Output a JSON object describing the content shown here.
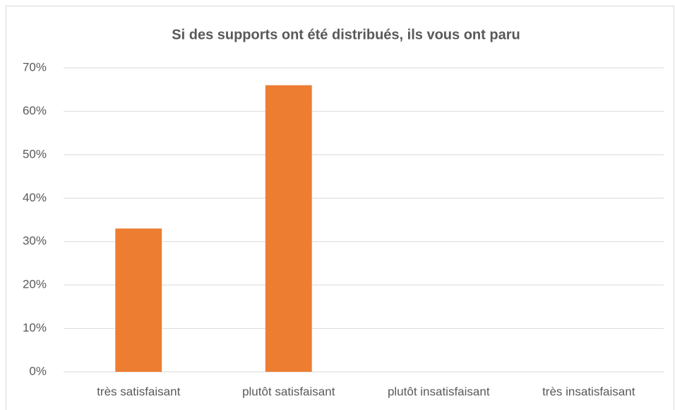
{
  "chart_data": {
    "type": "bar",
    "title": "Si des supports ont été distribués, ils vous ont paru",
    "categories": [
      "très satisfaisant",
      "plutôt satisfaisant",
      "plutôt insatisfaisant",
      "très insatisfaisant"
    ],
    "values": [
      33,
      66,
      0,
      0
    ],
    "color": "#ed7d31",
    "ylim": [
      0,
      70
    ],
    "yticks": [
      {
        "value": 0,
        "label": "0%"
      },
      {
        "value": 10,
        "label": "10%"
      },
      {
        "value": 20,
        "label": "20%"
      },
      {
        "value": 30,
        "label": "30%"
      },
      {
        "value": 40,
        "label": "40%"
      },
      {
        "value": 50,
        "label": "50%"
      },
      {
        "value": 60,
        "label": "60%"
      },
      {
        "value": 70,
        "label": "70%"
      }
    ],
    "grid": true
  }
}
